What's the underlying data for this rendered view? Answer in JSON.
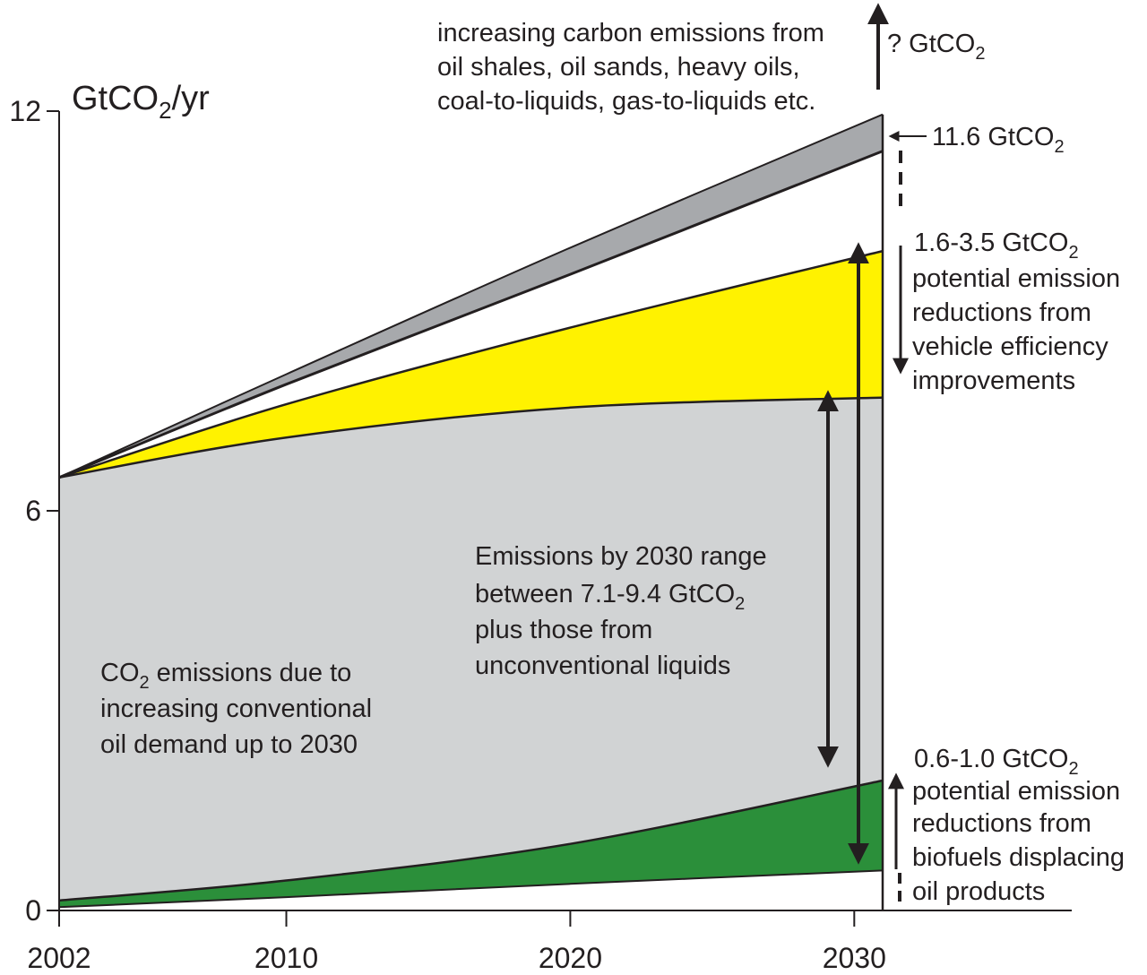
{
  "chart_data": {
    "type": "area",
    "title": "",
    "xlabel": "",
    "ylabel": "GtCO",
    "ylabel_sub": "2",
    "ylabel_suffix": "/yr",
    "xlim": [
      2002,
      2038
    ],
    "ylim": [
      0,
      12
    ],
    "x_ticks": [
      2002,
      2010,
      2020,
      2030
    ],
    "x_tick_labels": [
      "2002",
      "2010",
      "2020",
      "2030"
    ],
    "y_ticks": [
      0,
      6,
      12
    ],
    "y_tick_labels": [
      "0",
      "6",
      "12"
    ],
    "grid": false,
    "legend": "none",
    "x": [
      2002,
      2010,
      2020,
      2031
    ],
    "series": [
      {
        "key": "green_bottom",
        "values": [
          0.05,
          0.2,
          0.4,
          0.6
        ]
      },
      {
        "key": "green_top",
        "values": [
          0.15,
          0.45,
          1.0,
          1.95
        ]
      },
      {
        "key": "grey_top",
        "values": [
          6.5,
          7.1,
          7.55,
          7.7
        ]
      },
      {
        "key": "yellow_top",
        "values": [
          6.5,
          7.6,
          8.75,
          9.9
        ]
      },
      {
        "key": "line_top",
        "values": [
          6.5,
          7.9,
          9.55,
          11.4
        ]
      },
      {
        "key": "dark_top",
        "values": [
          6.5,
          8.05,
          9.95,
          11.95
        ]
      }
    ],
    "colors": {
      "green": "#2b8f3a",
      "grey": "#d1d3d4",
      "yellow": "#fff200",
      "dark_grey": "#a7a9ac",
      "ink": "#231f20"
    },
    "annotations": {
      "unconventional": [
        "increasing carbon emissions from",
        "oil shales, oil sands, heavy oils,",
        "coal-to-liquids, gas-to-liquids etc."
      ],
      "unknown_prefix": "? GtCO",
      "unknown_sub": "2",
      "top_value_prefix": "11.6 GtCO",
      "top_value_sub": "2",
      "vehicle_value_prefix": "1.6-3.5 GtCO",
      "vehicle_value_sub": "2",
      "vehicle_lines": [
        "potential emission",
        "reductions from",
        "vehicle efficiency",
        "improvements"
      ],
      "range_line1": "Emissions by 2030 range",
      "range_line2_prefix": "between 7.1-9.4 GtCO",
      "range_line2_sub": "2",
      "range_line3": "plus those from",
      "range_line4": "unconventional liquids",
      "conventional_line1_prefix": "CO",
      "conventional_line1_sub": "2",
      "conventional_line1_suffix": " emissions due to",
      "conventional_line2": "increasing conventional",
      "conventional_line3": "oil demand up to 2030",
      "biofuel_value_prefix": "0.6-1.0 GtCO",
      "biofuel_value_sub": "2",
      "biofuel_lines": [
        "potential emission",
        "reductions from",
        "biofuels displacing",
        "oil products"
      ]
    }
  }
}
